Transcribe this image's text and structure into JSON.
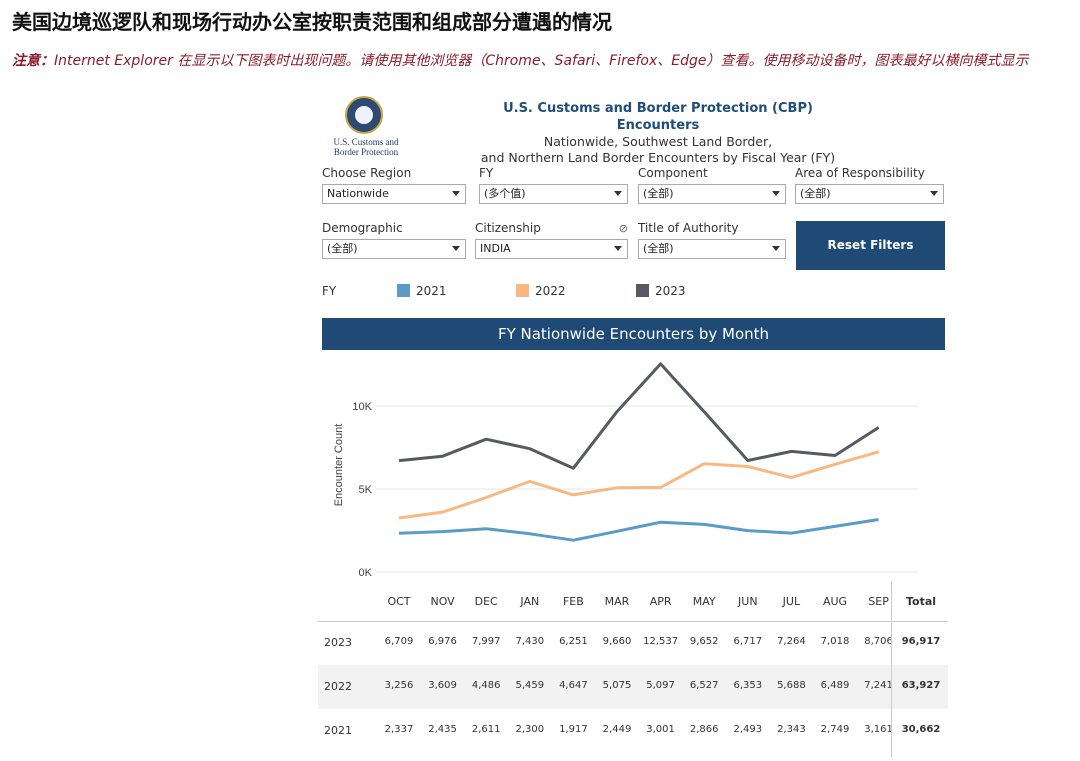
{
  "page": {
    "title": "美国边境巡逻队和现场行动办公室按职责范围和组成部分遭遇的情况",
    "notice_label": "注意：",
    "notice_text": "Internet Explorer 在显示以下图表时出现问题。请使用其他浏览器（Chrome、Safari、Firefox、Edge）查看。使用移动设备时，图表最好以横向模式显示"
  },
  "logo": {
    "line1": "U.S. Customs and",
    "line2": "Border Protection"
  },
  "header": {
    "title": "U.S. Customs and Border Protection (CBP) Encounters",
    "subtitle1": "Nationwide, Southwest Land Border,",
    "subtitle2": "and Northern Land Border Encounters by Fiscal Year (FY)"
  },
  "filters": {
    "region": {
      "label": "Choose Region",
      "value": "Nationwide"
    },
    "fy": {
      "label": "FY",
      "value": "(多个值)"
    },
    "component": {
      "label": "Component",
      "value": "(全部)"
    },
    "aor": {
      "label": "Area of Responsibility",
      "value": "(全部)"
    },
    "demographic": {
      "label": "Demographic",
      "value": "(全部)"
    },
    "citizenship": {
      "label": "Citizenship",
      "value": "INDIA"
    },
    "authority": {
      "label": "Title of Authority",
      "value": "(全部)"
    },
    "reset_label": "Reset Filters"
  },
  "legend": {
    "label": "FY"
  },
  "colors": {
    "fy2021": "#5b9bc5",
    "fy2022": "#f7b981",
    "fy2023": "#575a62",
    "header": "#1f4a75"
  },
  "table": {
    "total_label": "Total",
    "totals": {
      "2023": "96,917",
      "2022": "63,927",
      "2021": "30,662"
    }
  },
  "chart_data": {
    "type": "line",
    "title": "FY Nationwide Encounters by Month",
    "ylabel": "Encounter Count",
    "xlabel": "",
    "categories": [
      "OCT",
      "NOV",
      "DEC",
      "JAN",
      "FEB",
      "MAR",
      "APR",
      "MAY",
      "JUN",
      "JUL",
      "AUG",
      "SEP"
    ],
    "yticks": [
      "0K",
      "5K",
      "10K"
    ],
    "ylim": [
      0,
      12800
    ],
    "grid": true,
    "legend_position": "top",
    "series": [
      {
        "name": "2023",
        "values": [
          6709,
          6976,
          7997,
          7430,
          6251,
          9660,
          12537,
          9652,
          6717,
          7264,
          7018,
          8706
        ],
        "labels": [
          "6,709",
          "6,976",
          "7,997",
          "7,430",
          "6,251",
          "9,660",
          "12,537",
          "9,652",
          "6,717",
          "7,264",
          "7,018",
          "8,706"
        ]
      },
      {
        "name": "2022",
        "values": [
          3256,
          3609,
          4486,
          5459,
          4647,
          5075,
          5097,
          6527,
          6353,
          5688,
          6489,
          7241
        ],
        "labels": [
          "3,256",
          "3,609",
          "4,486",
          "5,459",
          "4,647",
          "5,075",
          "5,097",
          "6,527",
          "6,353",
          "5,688",
          "6,489",
          "7,241"
        ]
      },
      {
        "name": "2021",
        "values": [
          2337,
          2435,
          2611,
          2300,
          1917,
          2449,
          3001,
          2866,
          2493,
          2343,
          2749,
          3161
        ],
        "labels": [
          "2,337",
          "2,435",
          "2,611",
          "2,300",
          "1,917",
          "2,449",
          "3,001",
          "2,866",
          "2,493",
          "2,343",
          "2,749",
          "3,161"
        ]
      }
    ]
  }
}
